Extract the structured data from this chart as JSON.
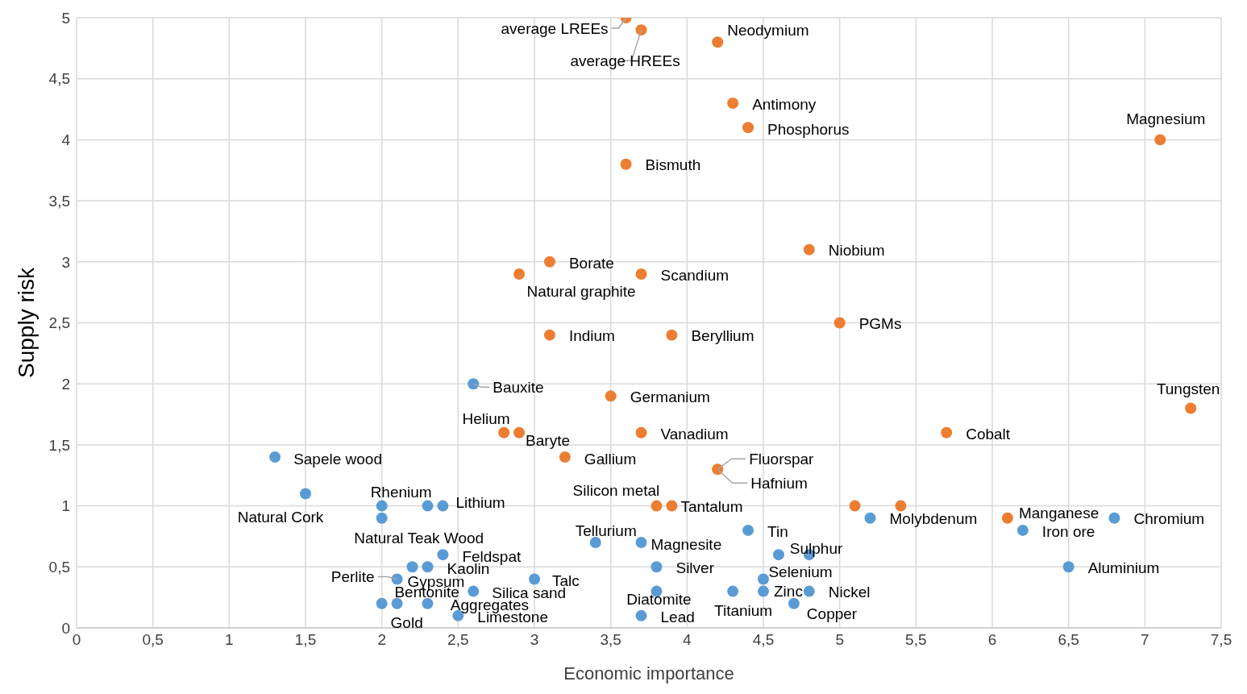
{
  "chart_data": {
    "type": "scatter",
    "xlabel": "Economic importance",
    "ylabel": "Supply risk",
    "xlim": [
      0,
      7.5
    ],
    "ylim": [
      0,
      5
    ],
    "xticks": [
      0,
      {
        "value": 0.5,
        "label": "0,5"
      },
      1,
      {
        "value": 1.5,
        "label": "1,5"
      },
      2,
      {
        "value": 2.5,
        "label": "2,5"
      },
      3,
      {
        "value": 3.5,
        "label": "3,5"
      },
      4,
      {
        "value": 4.5,
        "label": "4,5"
      },
      5,
      {
        "value": 5.5,
        "label": "5,5"
      },
      6,
      {
        "value": 6.5,
        "label": "6,5"
      },
      7,
      {
        "value": 7.5,
        "label": "7,5"
      }
    ],
    "yticks": [
      0,
      {
        "value": 0.5,
        "label": "0,5"
      },
      1,
      {
        "value": 1.5,
        "label": "1,5"
      },
      2,
      {
        "value": 2.5,
        "label": "2,5"
      },
      3,
      {
        "value": 3.5,
        "label": "3,5"
      },
      4,
      {
        "value": 4.5,
        "label": "4,5"
      },
      5
    ],
    "grid": true,
    "marker": "circle",
    "series": [
      {
        "color": "#ed7d31",
        "x": [
          3.6,
          3.7,
          4.2,
          4.3,
          4.4,
          7.1,
          3.6,
          4.8,
          3.1,
          2.9,
          3.7,
          5.0,
          3.1,
          3.9,
          3.5,
          7.3,
          2.8,
          2.9,
          3.7,
          5.7,
          3.2,
          4.2,
          3.8,
          3.9,
          5.1,
          5.4,
          6.1
        ],
        "values": [
          5.0,
          4.9,
          4.8,
          4.3,
          4.1,
          4.0,
          3.8,
          3.1,
          3.0,
          2.9,
          2.9,
          2.5,
          2.4,
          2.4,
          1.9,
          1.8,
          1.6,
          1.6,
          1.6,
          1.6,
          1.4,
          1.3,
          1.0,
          1.0,
          1.0,
          1.0,
          0.9
        ]
      },
      {
        "color": "#5b9bd5",
        "x": [
          2.6,
          1.3,
          1.5,
          2.0,
          2.0,
          2.3,
          2.4,
          2.4,
          2.2,
          2.3,
          2.1,
          2.6,
          3.0,
          2.0,
          2.1,
          2.3,
          2.5,
          3.4,
          3.7,
          3.8,
          3.8,
          3.7,
          4.4,
          4.6,
          4.8,
          4.5,
          4.3,
          4.5,
          4.8,
          4.7,
          5.2,
          6.2,
          6.8,
          6.5
        ],
        "values": [
          2.0,
          1.4,
          1.1,
          1.0,
          0.9,
          1.0,
          1.0,
          0.6,
          0.5,
          0.5,
          0.4,
          0.3,
          0.4,
          0.2,
          0.2,
          0.2,
          0.1,
          0.7,
          0.7,
          0.5,
          0.3,
          0.1,
          0.8,
          0.6,
          0.6,
          0.4,
          0.3,
          0.3,
          0.3,
          0.2,
          0.9,
          0.8,
          0.9,
          0.5
        ]
      }
    ],
    "annotations": [
      {
        "text": "average LREEs",
        "x": 3.6,
        "y": 5.0
      },
      {
        "text": "average HREEs",
        "x": 3.7,
        "y": 4.9
      },
      {
        "text": "Neodymium",
        "x": 4.2,
        "y": 4.8
      },
      {
        "text": "Antimony",
        "x": 4.3,
        "y": 4.3
      },
      {
        "text": "Phosphorus",
        "x": 4.4,
        "y": 4.1
      },
      {
        "text": "Magnesium",
        "x": 7.1,
        "y": 4.0
      },
      {
        "text": "Bismuth",
        "x": 3.6,
        "y": 3.8
      },
      {
        "text": "Niobium",
        "x": 4.8,
        "y": 3.1
      },
      {
        "text": "Borate",
        "x": 3.1,
        "y": 3.0
      },
      {
        "text": "Natural graphite",
        "x": 2.9,
        "y": 2.9
      },
      {
        "text": "Scandium",
        "x": 3.7,
        "y": 2.9
      },
      {
        "text": "PGMs",
        "x": 5.0,
        "y": 2.5
      },
      {
        "text": "Indium",
        "x": 3.1,
        "y": 2.4
      },
      {
        "text": "Beryllium",
        "x": 3.9,
        "y": 2.4
      },
      {
        "text": "Germanium",
        "x": 3.5,
        "y": 1.9
      },
      {
        "text": "Tungsten",
        "x": 7.3,
        "y": 1.8
      },
      {
        "text": "Helium",
        "x": 2.8,
        "y": 1.6
      },
      {
        "text": "Baryte",
        "x": 2.9,
        "y": 1.6
      },
      {
        "text": "Vanadium",
        "x": 3.7,
        "y": 1.6
      },
      {
        "text": "Cobalt",
        "x": 5.7,
        "y": 1.6
      },
      {
        "text": "Gallium",
        "x": 3.2,
        "y": 1.4
      },
      {
        "text": "Fluorspar",
        "x": 4.2,
        "y": 1.3
      },
      {
        "text": "Hafnium",
        "x": 4.2,
        "y": 1.3
      },
      {
        "text": "Silicon metal",
        "x": 3.8,
        "y": 1.0
      },
      {
        "text": "Tantalum",
        "x": 3.9,
        "y": 1.0
      },
      {
        "text": "Manganese",
        "x": 6.1,
        "y": 0.9
      },
      {
        "text": "Bauxite",
        "x": 2.6,
        "y": 2.0
      },
      {
        "text": "Sapele wood",
        "x": 1.3,
        "y": 1.4
      },
      {
        "text": "Natural Cork",
        "x": 1.5,
        "y": 1.1
      },
      {
        "text": "Rhenium",
        "x": 2.0,
        "y": 1.0
      },
      {
        "text": "Natural Teak Wood",
        "x": 2.0,
        "y": 0.9
      },
      {
        "text": "Lithium",
        "x": 2.4,
        "y": 1.0
      },
      {
        "text": "Feldspat",
        "x": 2.4,
        "y": 0.6
      },
      {
        "text": "Kaolin",
        "x": 2.3,
        "y": 0.5
      },
      {
        "text": "Gypsum",
        "x": 2.2,
        "y": 0.5
      },
      {
        "text": "Perlite",
        "x": 2.1,
        "y": 0.4
      },
      {
        "text": "Bentonite",
        "x": 2.1,
        "y": 0.2
      },
      {
        "text": "Gold",
        "x": 2.0,
        "y": 0.2
      },
      {
        "text": "Aggregates",
        "x": 2.3,
        "y": 0.2
      },
      {
        "text": "Limestone",
        "x": 2.5,
        "y": 0.1
      },
      {
        "text": "Silica sand",
        "x": 2.6,
        "y": 0.3
      },
      {
        "text": "Talc",
        "x": 3.0,
        "y": 0.4
      },
      {
        "text": "Tellurium",
        "x": 3.4,
        "y": 0.7
      },
      {
        "text": "Magnesite",
        "x": 3.7,
        "y": 0.7
      },
      {
        "text": "Silver",
        "x": 3.8,
        "y": 0.5
      },
      {
        "text": "Diatomite",
        "x": 3.8,
        "y": 0.3
      },
      {
        "text": "Lead",
        "x": 3.7,
        "y": 0.1
      },
      {
        "text": "Tin",
        "x": 4.4,
        "y": 0.8
      },
      {
        "text": "Sulphur",
        "x": 4.8,
        "y": 0.6
      },
      {
        "text": "Selenium",
        "x": 4.5,
        "y": 0.4
      },
      {
        "text": "Titanium",
        "x": 4.3,
        "y": 0.3
      },
      {
        "text": "Zinc",
        "x": 4.5,
        "y": 0.3
      },
      {
        "text": "Nickel",
        "x": 4.8,
        "y": 0.3
      },
      {
        "text": "Copper",
        "x": 4.7,
        "y": 0.2
      },
      {
        "text": "Molybdenum",
        "x": 5.2,
        "y": 0.9
      },
      {
        "text": "Iron ore",
        "x": 6.2,
        "y": 0.8
      },
      {
        "text": "Chromium",
        "x": 6.8,
        "y": 0.9
      },
      {
        "text": "Aluminium",
        "x": 6.5,
        "y": 0.5
      }
    ]
  }
}
